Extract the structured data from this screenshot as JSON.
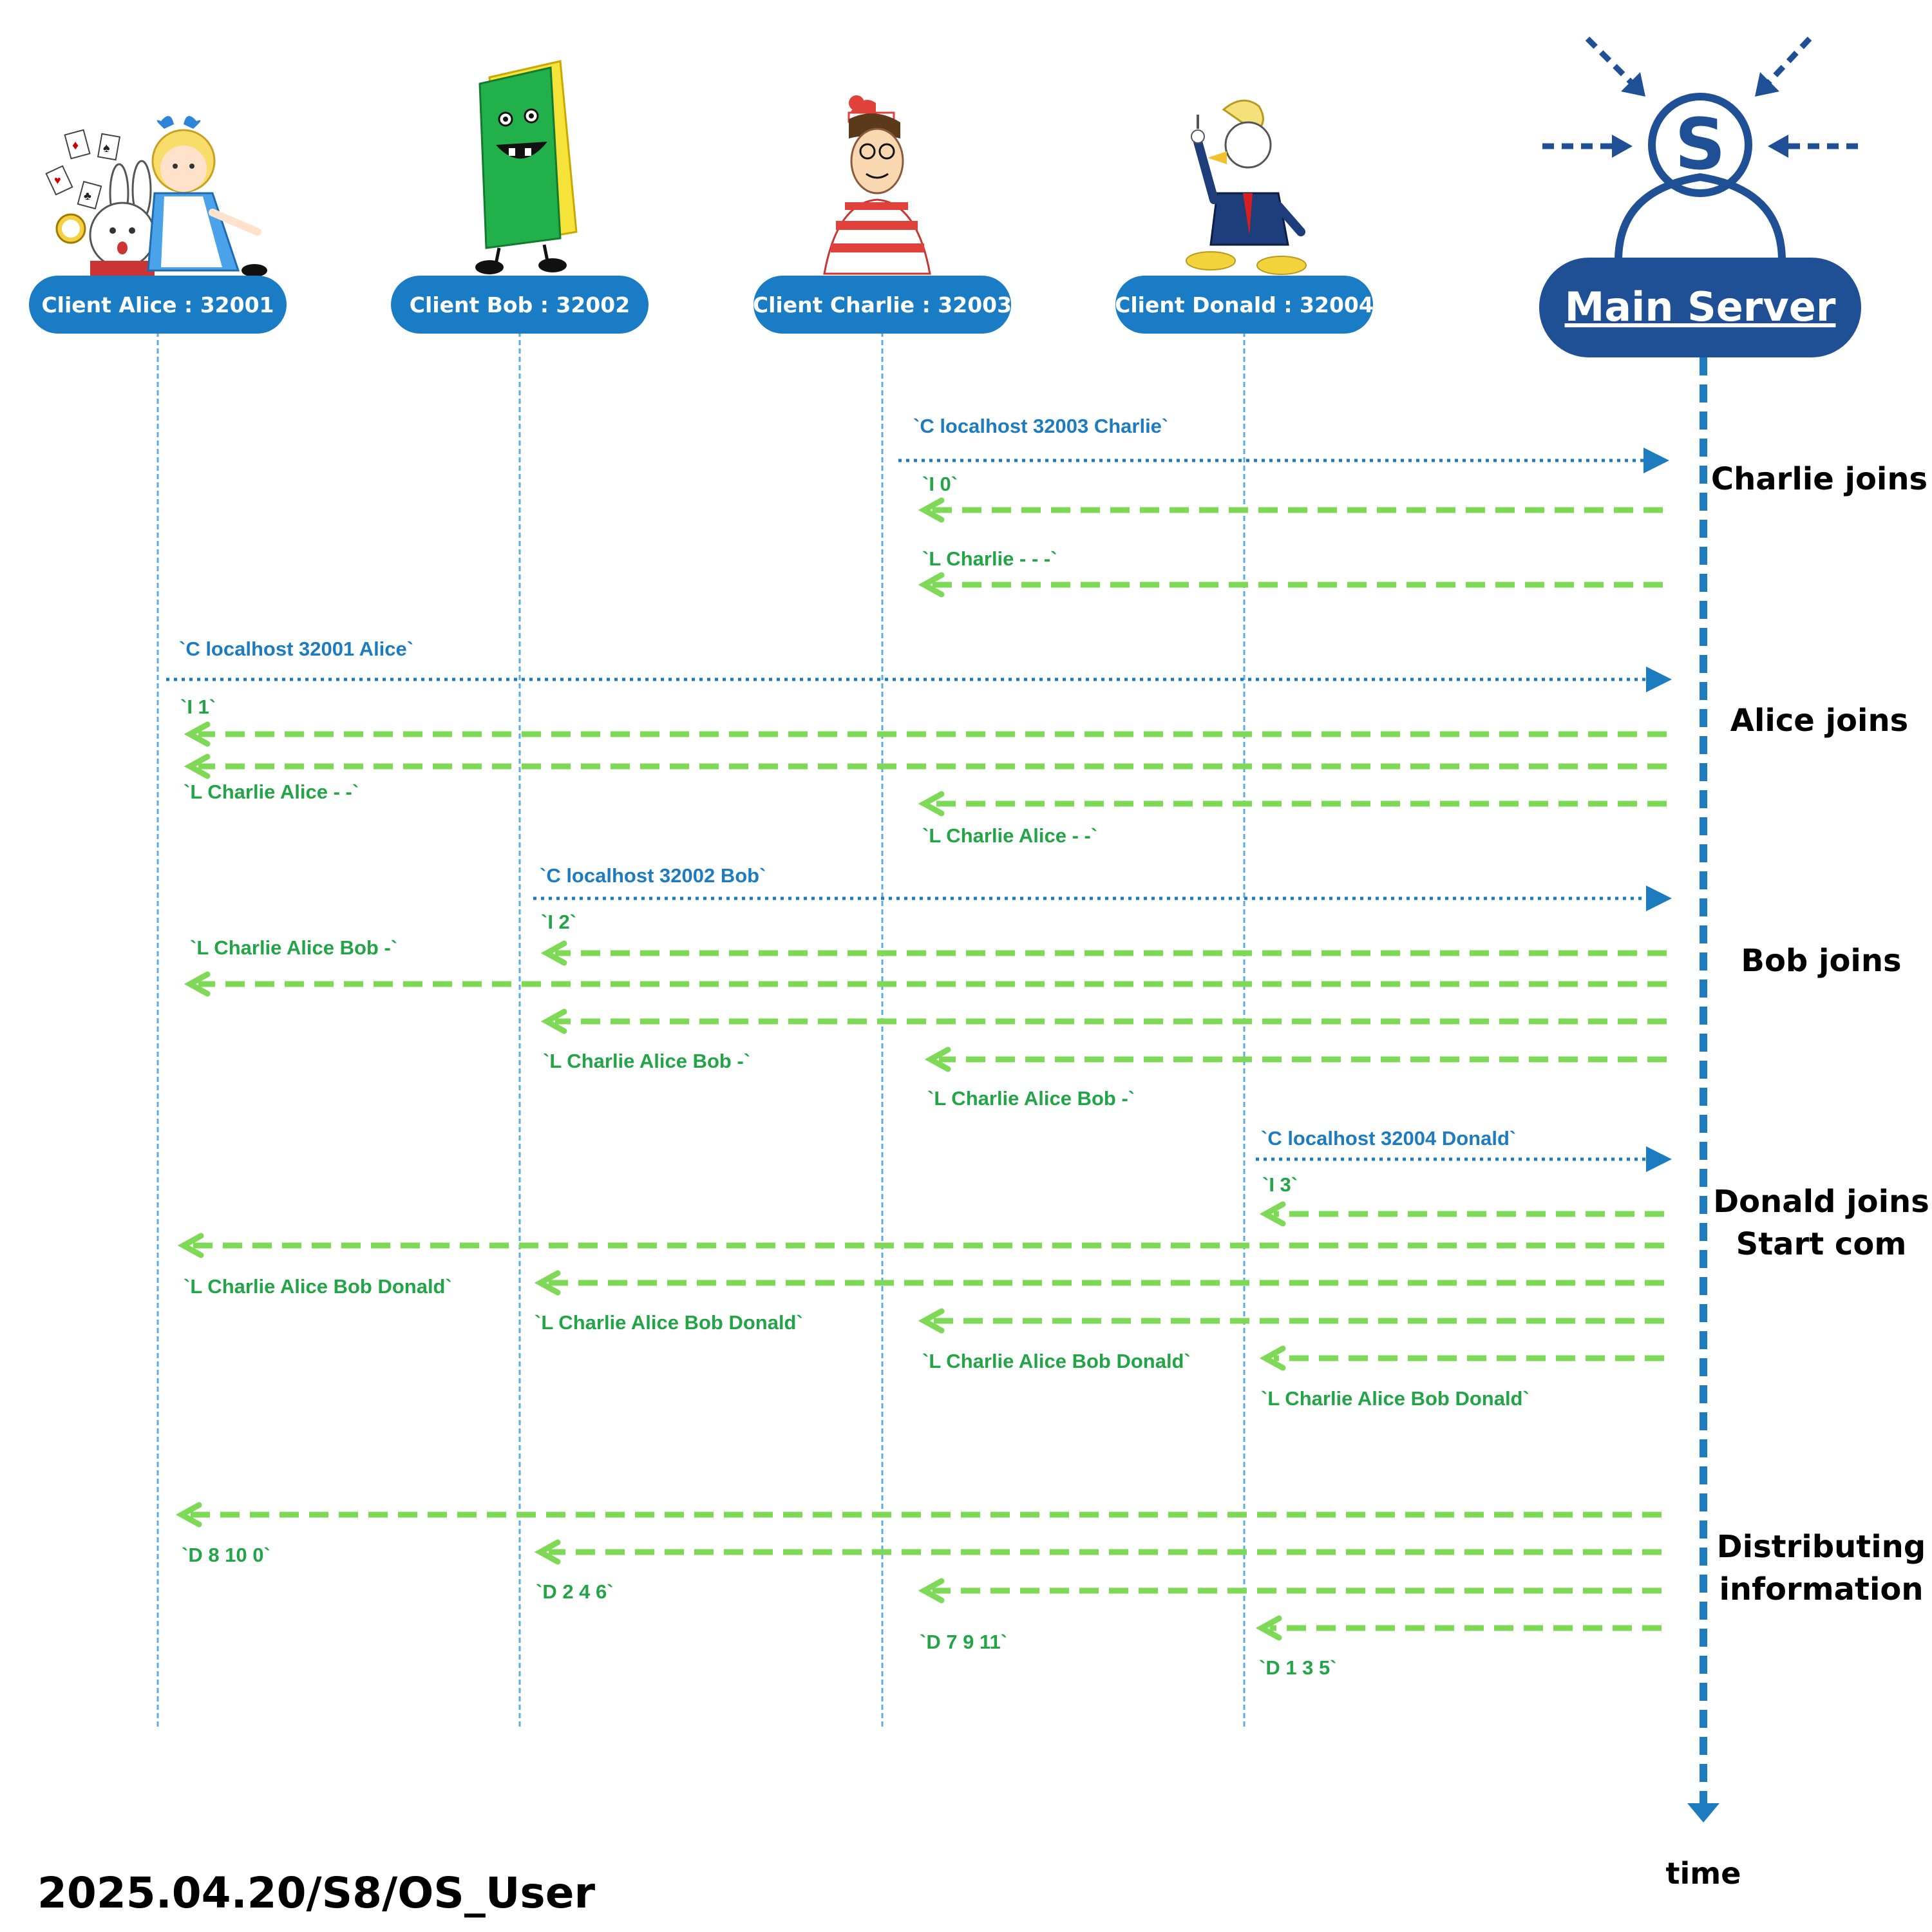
{
  "clients": [
    {
      "name": "Client Alice : 32001"
    },
    {
      "name": "Client Bob : 32002"
    },
    {
      "name": "Client Charlie : 32003"
    },
    {
      "name": "Client Donald : 32004"
    }
  ],
  "server": {
    "name": "Main Server",
    "icon_letter": "S"
  },
  "phases": [
    {
      "lines": [
        "Charlie joins"
      ]
    },
    {
      "lines": [
        "Alice joins"
      ]
    },
    {
      "lines": [
        "Bob joins"
      ]
    },
    {
      "lines": [
        "Donald joins",
        "Start com"
      ]
    },
    {
      "lines": [
        "Distributing",
        "information"
      ]
    }
  ],
  "messages": [
    {
      "from": "Client Charlie : 32003",
      "to": "Main Server",
      "kind": "request",
      "label": "`C localhost 32003 Charlie`"
    },
    {
      "from": "Main Server",
      "to": "Client Charlie : 32003",
      "kind": "reply",
      "label": "`I 0`"
    },
    {
      "from": "Main Server",
      "to": "Client Charlie : 32003",
      "kind": "reply",
      "label": "`L Charlie - - -`"
    },
    {
      "from": "Client Alice : 32001",
      "to": "Main Server",
      "kind": "request",
      "label": "`C localhost 32001 Alice`"
    },
    {
      "from": "Main Server",
      "to": "Client Alice : 32001",
      "kind": "reply",
      "label": "`I 1`"
    },
    {
      "from": "Main Server",
      "to": "Client Alice : 32001",
      "kind": "reply",
      "label": "`L Charlie Alice - -`"
    },
    {
      "from": "Main Server",
      "to": "Client Charlie : 32003",
      "kind": "reply",
      "label": "`L Charlie Alice - -`"
    },
    {
      "from": "Client Bob : 32002",
      "to": "Main Server",
      "kind": "request",
      "label": "`C localhost 32002 Bob`"
    },
    {
      "from": "Main Server",
      "to": "Client Bob : 32002",
      "kind": "reply",
      "label": "`I 2`"
    },
    {
      "from": "Main Server",
      "to": "Client Alice : 32001",
      "kind": "reply",
      "label": "`L Charlie Alice Bob -`"
    },
    {
      "from": "Main Server",
      "to": "Client Bob : 32002",
      "kind": "reply",
      "label": "`L Charlie Alice Bob -`"
    },
    {
      "from": "Main Server",
      "to": "Client Charlie : 32003",
      "kind": "reply",
      "label": "`L Charlie Alice Bob -`"
    },
    {
      "from": "Client Donald : 32004",
      "to": "Main Server",
      "kind": "request",
      "label": "`C localhost 32004 Donald`"
    },
    {
      "from": "Main Server",
      "to": "Client Donald : 32004",
      "kind": "reply",
      "label": "`I 3`"
    },
    {
      "from": "Main Server",
      "to": "Client Alice : 32001",
      "kind": "reply",
      "label": "`L Charlie Alice Bob Donald`"
    },
    {
      "from": "Main Server",
      "to": "Client Bob : 32002",
      "kind": "reply",
      "label": "`L Charlie Alice Bob Donald`"
    },
    {
      "from": "Main Server",
      "to": "Client Charlie : 32003",
      "kind": "reply",
      "label": "`L Charlie Alice Bob Donald`"
    },
    {
      "from": "Main Server",
      "to": "Client Donald : 32004",
      "kind": "reply",
      "label": "`L Charlie Alice Bob Donald`"
    },
    {
      "from": "Main Server",
      "to": "Client Alice : 32001",
      "kind": "reply",
      "label": "`D 8 10 0`"
    },
    {
      "from": "Main Server",
      "to": "Client Bob : 32002",
      "kind": "reply",
      "label": "`D 2 4 6`"
    },
    {
      "from": "Main Server",
      "to": "Client Charlie : 32003",
      "kind": "reply",
      "label": "`D 7 9 11`"
    },
    {
      "from": "Main Server",
      "to": "Client Donald : 32004",
      "kind": "reply",
      "label": "`D 1 3 5`"
    }
  ],
  "time_label": "time",
  "footer": "2025.04.20/S8/OS_User",
  "colors": {
    "client_pill": "#1a7cc4",
    "server_pill": "#1f4f94",
    "request_arrow": "#1d7cc0",
    "reply_arrow": "#7ed957",
    "reply_text": "#22a447",
    "lifeline": "#5aaee0"
  },
  "icons": [
    "alice-rabbit-illustration",
    "sponge-character-illustration",
    "waldo-illustration",
    "donald-duck-illustration",
    "server-network-icon"
  ]
}
